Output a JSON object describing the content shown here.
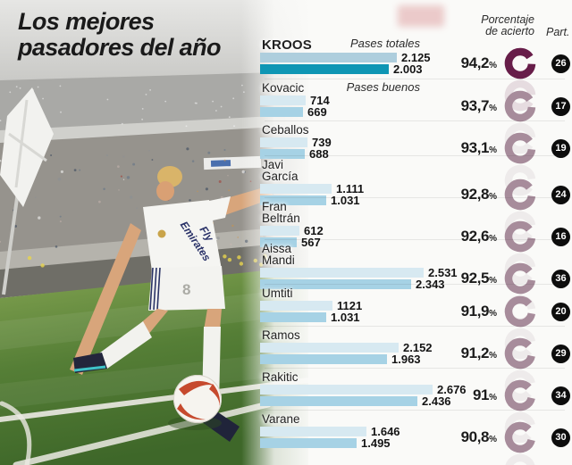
{
  "title": {
    "line1": "Los mejores",
    "line2": "pasadores del año"
  },
  "labels": {
    "pases_totales": "Pases totales",
    "pases_buenos": "Pases buenos",
    "porcentaje_acierto": "Porcentaje\nde acierto",
    "part": "Part.",
    "percent_sign": "%"
  },
  "photo": {
    "jersey_sponsor_line1": "Fly",
    "jersey_sponsor_line2": "Emirates",
    "shorts_number": "8"
  },
  "chart_data": {
    "type": "bar",
    "orientation": "horizontal",
    "title": "Los mejores pasadores del año",
    "xlim": [
      0,
      2676
    ],
    "categories": [
      "Kroos",
      "Kovacic",
      "Ceballos",
      "Javi García",
      "Fran Beltrán",
      "Aissa Mandi",
      "Umtiti",
      "Ramos",
      "Rakitic",
      "Varane"
    ],
    "series": [
      {
        "name": "Pases totales",
        "values": [
          2125,
          714,
          739,
          1111,
          612,
          2531,
          1121,
          2152,
          2676,
          1646
        ]
      },
      {
        "name": "Pases buenos",
        "values": [
          2003,
          669,
          688,
          1031,
          567,
          2343,
          1031,
          1963,
          2436,
          1495
        ]
      }
    ],
    "accuracy_pct": [
      94.2,
      93.7,
      93.1,
      92.8,
      92.6,
      92.5,
      91.9,
      91.2,
      91,
      90.8
    ],
    "participation": [
      26,
      17,
      19,
      24,
      16,
      36,
      20,
      29,
      34,
      30
    ],
    "players": [
      {
        "name": "KROOS",
        "highlight": true,
        "totales": 2125,
        "totales_label": "2.125",
        "buenos": 2003,
        "buenos_label": "2.003",
        "acierto": 94.2,
        "acierto_label": "94,2",
        "part": 26
      },
      {
        "name": "Kovacic",
        "highlight": false,
        "totales": 714,
        "totales_label": "714",
        "buenos": 669,
        "buenos_label": "669",
        "acierto": 93.7,
        "acierto_label": "93,7",
        "part": 17
      },
      {
        "name": "Ceballos",
        "highlight": false,
        "totales": 739,
        "totales_label": "739",
        "buenos": 688,
        "buenos_label": "688",
        "acierto": 93.1,
        "acierto_label": "93,1",
        "part": 19
      },
      {
        "name": "Javi\nGarcía",
        "highlight": false,
        "totales": 1111,
        "totales_label": "1.111",
        "buenos": 1031,
        "buenos_label": "1.031",
        "acierto": 92.8,
        "acierto_label": "92,8",
        "part": 24
      },
      {
        "name": "Fran\nBeltrán",
        "highlight": false,
        "totales": 612,
        "totales_label": "612",
        "buenos": 567,
        "buenos_label": "567",
        "acierto": 92.6,
        "acierto_label": "92,6",
        "part": 16
      },
      {
        "name": "Aissa\nMandi",
        "highlight": false,
        "totales": 2531,
        "totales_label": "2.531",
        "buenos": 2343,
        "buenos_label": "2.343",
        "acierto": 92.5,
        "acierto_label": "92,5",
        "part": 36
      },
      {
        "name": "Umtiti",
        "highlight": false,
        "totales": 1121,
        "totales_label": "1121",
        "buenos": 1031,
        "buenos_label": "1.031",
        "acierto": 91.9,
        "acierto_label": "91,9",
        "part": 20
      },
      {
        "name": "Ramos",
        "highlight": false,
        "totales": 2152,
        "totales_label": "2.152",
        "buenos": 1963,
        "buenos_label": "1.963",
        "acierto": 91.2,
        "acierto_label": "91,2",
        "part": 29
      },
      {
        "name": "Rakitic",
        "highlight": false,
        "totales": 2676,
        "totales_label": "2.676",
        "buenos": 2436,
        "buenos_label": "2.436",
        "acierto": 91,
        "acierto_label": "91",
        "part": 34
      },
      {
        "name": "Varane",
        "highlight": false,
        "totales": 1646,
        "totales_label": "1.646",
        "buenos": 1495,
        "buenos_label": "1.495",
        "acierto": 90.8,
        "acierto_label": "90,8",
        "part": 30
      }
    ],
    "colors": {
      "bar_total": "#d7e9f1",
      "bar_buenos": "#a6d2e5",
      "bar_total_highlight": "#aecedd",
      "bar_buenos_highlight": "#0f96b4",
      "donut": "#a78c9b",
      "donut_highlight": "#671d49",
      "part_badge": "#0d0d0d"
    }
  }
}
